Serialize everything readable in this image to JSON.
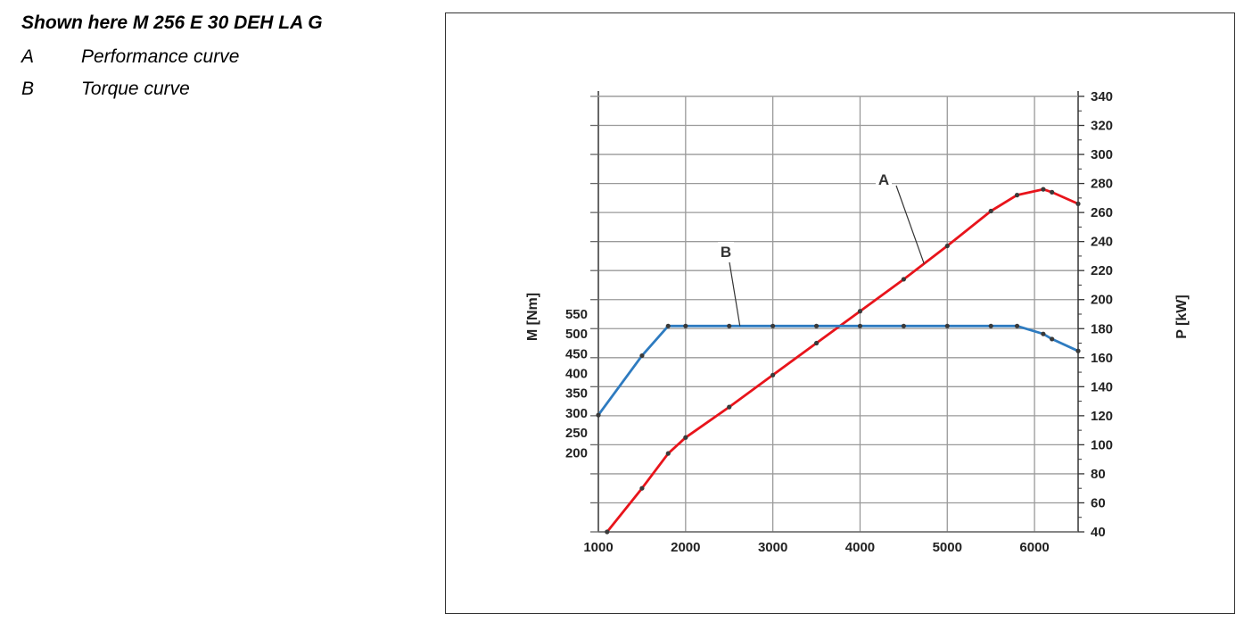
{
  "caption": {
    "title": "Shown here M 256 E 30 DEH LA G",
    "legend": [
      {
        "key": "A",
        "label": "Performance curve"
      },
      {
        "key": "B",
        "label": "Torque curve"
      }
    ]
  },
  "chart_data": {
    "type": "line",
    "x_axis": {
      "ticks": [
        1000,
        2000,
        3000,
        4000,
        5000,
        6000
      ],
      "range": [
        1000,
        6500
      ]
    },
    "y_left": {
      "label": "M [Nm]",
      "ticks": [
        200,
        250,
        300,
        350,
        400,
        450,
        500,
        550
      ],
      "range": [
        0,
        1100
      ]
    },
    "y_right": {
      "label": "P [kW]",
      "ticks": [
        40,
        60,
        80,
        100,
        120,
        140,
        160,
        180,
        200,
        220,
        240,
        260,
        280,
        300,
        320,
        340
      ],
      "range": [
        40,
        340
      ]
    },
    "grid": true,
    "series": [
      {
        "name": "A",
        "axis": "right",
        "color": "#e8141b",
        "points": [
          [
            1100,
            40
          ],
          [
            1500,
            70
          ],
          [
            1800,
            94
          ],
          [
            2000,
            105
          ],
          [
            2500,
            126
          ],
          [
            3000,
            148
          ],
          [
            3500,
            170
          ],
          [
            4000,
            192
          ],
          [
            4500,
            214
          ],
          [
            5000,
            237
          ],
          [
            5500,
            261
          ],
          [
            5800,
            272
          ],
          [
            6100,
            276
          ],
          [
            6200,
            274
          ],
          [
            6500,
            266
          ]
        ]
      },
      {
        "name": "B",
        "axis": "left",
        "color": "#2e7bc0",
        "points": [
          [
            1000,
            295
          ],
          [
            1500,
            445
          ],
          [
            1800,
            520
          ],
          [
            2000,
            520
          ],
          [
            2500,
            520
          ],
          [
            3000,
            520
          ],
          [
            3500,
            520
          ],
          [
            4000,
            520
          ],
          [
            4500,
            520
          ],
          [
            5000,
            520
          ],
          [
            5500,
            520
          ],
          [
            5800,
            520
          ],
          [
            6100,
            500
          ],
          [
            6200,
            487
          ],
          [
            6500,
            457
          ]
        ]
      }
    ],
    "annotations": [
      {
        "text": "A",
        "series": "A"
      },
      {
        "text": "B",
        "series": "B"
      }
    ]
  }
}
